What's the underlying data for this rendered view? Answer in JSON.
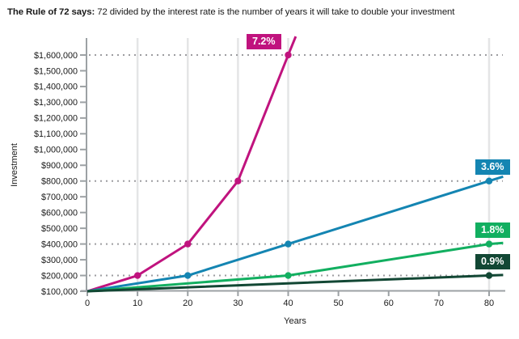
{
  "title": {
    "bold": "The Rule of 72 says:",
    "rest": " 72 divided by the interest rate is the number of years it will take to double your investment"
  },
  "chart_data": {
    "type": "line",
    "title": "The Rule of 72 says: 72 divided by the interest rate is the number of years it will take to double your investment",
    "xlabel": "Years",
    "ylabel": "Investment",
    "x_ticks": [
      0,
      10,
      20,
      30,
      40,
      50,
      60,
      70,
      80
    ],
    "xlim": [
      0,
      82.8
    ],
    "ylim": [
      100000,
      1718000
    ],
    "y_ticks": [
      100000,
      200000,
      300000,
      400000,
      500000,
      600000,
      700000,
      800000,
      900000,
      1000000,
      1100000,
      1200000,
      1300000,
      1400000,
      1500000,
      1600000
    ],
    "y_tick_labels": [
      "$100,000",
      "$200,000",
      "$300,000",
      "$400,000",
      "$500,000",
      "$600,000",
      "$700,000",
      "$800,000",
      "$900,000",
      "$1,000,000",
      "$1,100,000",
      "$1,200,000",
      "$1,300,000",
      "$1,400,000",
      "$1,500,000",
      "$1,600,000"
    ],
    "vertical_gridlines_x": [
      10,
      20,
      30,
      40,
      80
    ],
    "dotted_gridlines_y": [
      200000,
      400000,
      800000,
      1600000
    ],
    "grid_on": true,
    "legend_position": "labels-on-chart",
    "colors": {
      "axis": "#9CA1A4",
      "vertical_grid": "#E4E5E6",
      "dotted_grid": "#9D9DA0",
      "text": "#191919"
    },
    "series": [
      {
        "name": "7.2%",
        "label": "7.2%",
        "color": "#C0137E",
        "points": [
          [
            0,
            100000
          ],
          [
            10,
            200000
          ],
          [
            20,
            400000
          ],
          [
            30,
            800000
          ],
          [
            40,
            1600000
          ],
          [
            41.5,
            1718000
          ]
        ],
        "markers": [
          [
            10,
            200000
          ],
          [
            20,
            400000
          ],
          [
            30,
            800000
          ],
          [
            40,
            1600000
          ]
        ],
        "label_anchor": [
          40,
          1600000
        ],
        "label_side": "left"
      },
      {
        "name": "3.6%",
        "label": "3.6%",
        "color": "#1485B2",
        "points": [
          [
            0,
            100000
          ],
          [
            20,
            200000
          ],
          [
            40,
            400000
          ],
          [
            80,
            800000
          ],
          [
            82.8,
            828000
          ]
        ],
        "markers": [
          [
            20,
            200000
          ],
          [
            40,
            400000
          ],
          [
            80,
            800000
          ]
        ],
        "label_anchor": [
          80,
          800000
        ],
        "label_side": "right"
      },
      {
        "name": "1.8%",
        "label": "1.8%",
        "color": "#12AF60",
        "points": [
          [
            0,
            100000
          ],
          [
            40,
            200000
          ],
          [
            80,
            400000
          ],
          [
            82.8,
            407000
          ]
        ],
        "markers": [
          [
            40,
            200000
          ],
          [
            80,
            400000
          ]
        ],
        "label_anchor": [
          80,
          400000
        ],
        "label_side": "right"
      },
      {
        "name": "0.9%",
        "label": "0.9%",
        "color": "#124734",
        "points": [
          [
            0,
            100000
          ],
          [
            80,
            200000
          ],
          [
            82.8,
            203500
          ]
        ],
        "markers": [
          [
            80,
            200000
          ]
        ],
        "label_anchor": [
          80,
          200000
        ],
        "label_side": "right"
      }
    ]
  }
}
